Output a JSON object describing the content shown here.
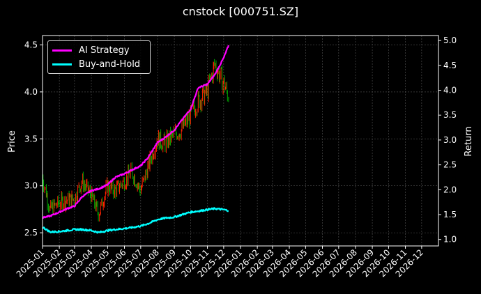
{
  "chart_data": {
    "type": "line",
    "title": "cnstock [000751.SZ]",
    "ylabel_left": "Price",
    "ylabel_right": "Return",
    "xlabel": "",
    "left_yticks": [
      "2.5",
      "3.0",
      "3.5",
      "4.0",
      "4.5"
    ],
    "right_yticks": [
      "1.0",
      "1.5",
      "2.0",
      "2.5",
      "3.0",
      "3.5",
      "4.0",
      "4.5",
      "5.0"
    ],
    "ylim_left": [
      2.36,
      4.6
    ],
    "ylim_right": [
      0.87,
      5.1
    ],
    "grid": true,
    "legend_position": "top-left",
    "x_tick_labels": [
      "2025-01",
      "2025-02",
      "2025-03",
      "2025-04",
      "2025-05",
      "2025-06",
      "2025-07",
      "2025-08",
      "2025-09",
      "2025-10",
      "2025-11",
      "2025-12",
      "2026-01",
      "2026-02",
      "2026-03",
      "2026-04",
      "2026-05",
      "2026-06",
      "2026-07",
      "2026-08",
      "2026-09",
      "2026-10",
      "2026-11",
      "2026-12"
    ],
    "x": [
      "2025-01",
      "2025-01-15",
      "2025-02",
      "2025-02-15",
      "2025-03",
      "2025-03-15",
      "2025-04",
      "2025-04-15",
      "2025-05",
      "2025-05-15",
      "2025-06",
      "2025-06-15",
      "2025-07",
      "2025-07-15",
      "2025-08",
      "2025-08-15",
      "2025-09",
      "2025-09-15",
      "2025-10",
      "2025-10-15",
      "2025-11",
      "2025-11-15",
      "2025-12",
      "2025-12-10"
    ],
    "series": [
      {
        "name": "AI Strategy",
        "axis": "right",
        "color": "#ff00ff",
        "values": [
          1.44,
          1.47,
          1.55,
          1.62,
          1.67,
          1.86,
          1.98,
          2.02,
          2.1,
          2.25,
          2.32,
          2.4,
          2.48,
          2.65,
          2.95,
          3.05,
          3.2,
          3.4,
          3.62,
          4.05,
          4.12,
          4.32,
          4.65,
          4.9
        ]
      },
      {
        "name": "Buy-and-Hold",
        "axis": "right",
        "color": "#00ffff",
        "values": [
          1.25,
          1.15,
          1.16,
          1.18,
          1.2,
          1.2,
          1.18,
          1.14,
          1.18,
          1.2,
          1.22,
          1.24,
          1.27,
          1.32,
          1.4,
          1.43,
          1.45,
          1.5,
          1.55,
          1.57,
          1.6,
          1.62,
          1.6,
          1.58
        ]
      },
      {
        "name": "Price",
        "axis": "left",
        "color_up": "#ff2200",
        "color_down": "#00aa00",
        "values": [
          3.1,
          2.75,
          2.82,
          2.85,
          2.86,
          3.05,
          2.9,
          2.7,
          3.0,
          2.95,
          3.05,
          3.15,
          2.95,
          3.2,
          3.5,
          3.45,
          3.55,
          3.6,
          3.75,
          3.9,
          4.0,
          4.3,
          4.1,
          3.95
        ]
      }
    ]
  }
}
